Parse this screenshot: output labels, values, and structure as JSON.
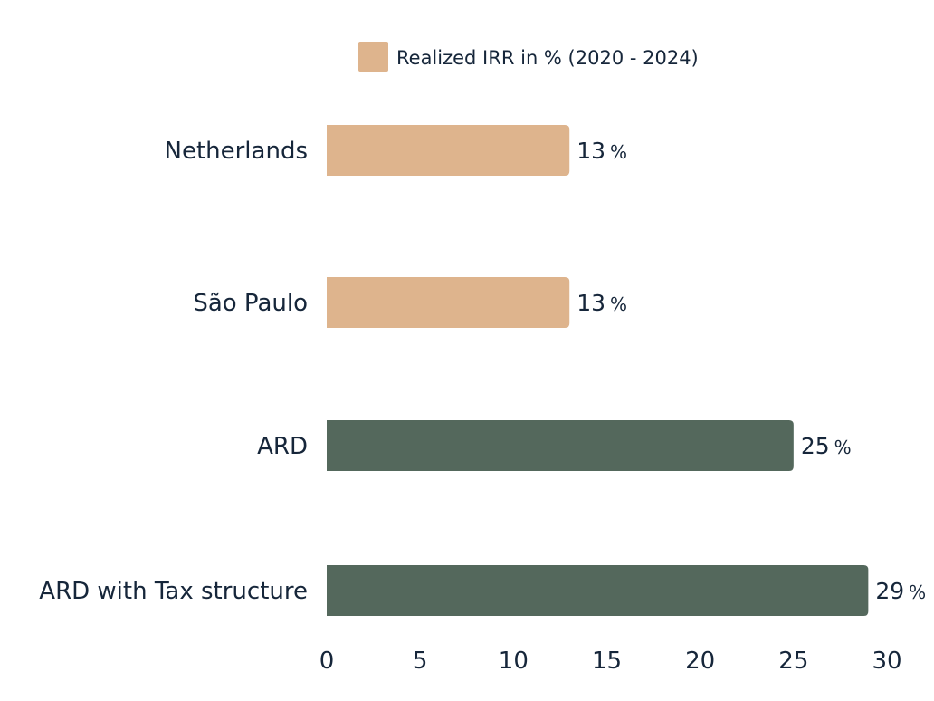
{
  "chart_data": {
    "type": "bar",
    "orientation": "horizontal",
    "categories": [
      "Netherlands",
      "São Paulo",
      "ARD",
      "ARD with Tax structure"
    ],
    "values": [
      13,
      13,
      25,
      29
    ],
    "value_suffix": "%",
    "bar_colors": [
      "#deb48d",
      "#deb48d",
      "#54685c",
      "#54685c"
    ],
    "legend": [
      {
        "label": "Realized IRR in % (2020 - 2024)",
        "color": "#deb48d"
      }
    ],
    "legend_position": "top",
    "xlim": [
      0,
      30
    ],
    "x_ticks": [
      0,
      5,
      10,
      15,
      20,
      25,
      30
    ],
    "grid": false
  }
}
